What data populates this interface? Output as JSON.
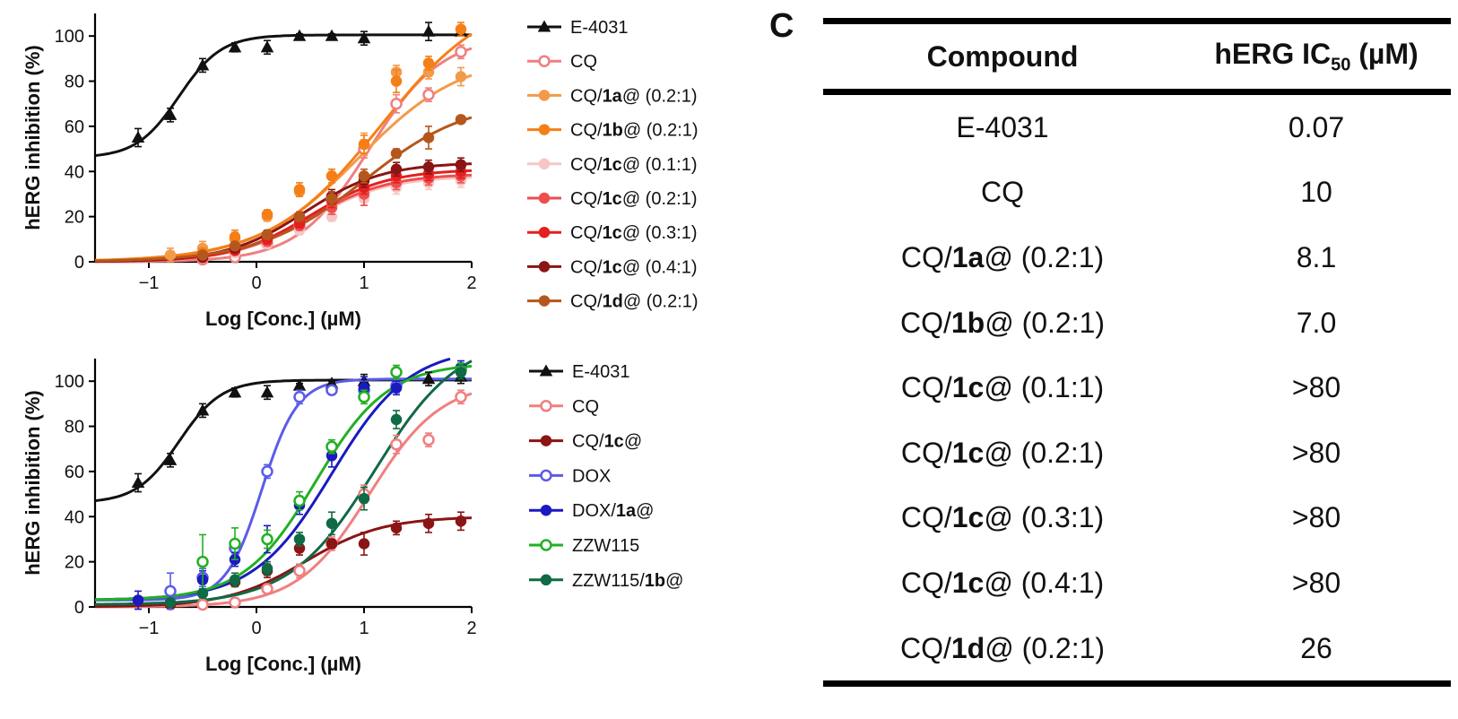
{
  "panel_label": "C",
  "table": {
    "headers": {
      "compound": "Compound",
      "ic50_prefix": "hERG IC",
      "ic50_sub": "50",
      "ic50_suffix": " (µM)"
    },
    "rows": [
      {
        "pre": "E-4031",
        "bold": "",
        "post": "",
        "value": "0.07"
      },
      {
        "pre": "CQ",
        "bold": "",
        "post": "",
        "value": "10"
      },
      {
        "pre": "CQ/",
        "bold": "1a",
        "post": "@ (0.2:1)",
        "value": "8.1"
      },
      {
        "pre": "CQ/",
        "bold": "1b",
        "post": "@ (0.2:1)",
        "value": "7.0"
      },
      {
        "pre": "CQ/",
        "bold": "1c",
        "post": "@ (0.1:1)",
        "value": ">80"
      },
      {
        "pre": "CQ/",
        "bold": "1c",
        "post": "@ (0.2:1)",
        "value": ">80"
      },
      {
        "pre": "CQ/",
        "bold": "1c",
        "post": "@ (0.3:1)",
        "value": ">80"
      },
      {
        "pre": "CQ/",
        "bold": "1c",
        "post": "@ (0.4:1)",
        "value": ">80"
      },
      {
        "pre": "CQ/",
        "bold": "1d",
        "post": "@ (0.2:1)",
        "value": "26"
      }
    ]
  },
  "chart_data": [
    {
      "type": "line",
      "xlabel": "Log [Conc.] (µM)",
      "ylabel": "hERG inhibition (%)",
      "xlim": [
        -1.5,
        2
      ],
      "ylim": [
        0,
        110
      ],
      "xticks": [
        -1,
        0,
        1,
        2
      ],
      "yticks": [
        0,
        20,
        40,
        60,
        80,
        100
      ],
      "grid": false,
      "legend": "right",
      "series": [
        {
          "pre": "E-4031",
          "bold": "",
          "post": "",
          "color": "#111111",
          "marker": "triangle",
          "fill": "filled",
          "curve": {
            "bottom": 46,
            "top": 100.5,
            "logic50": -0.72,
            "hill": 2.2
          },
          "points": [
            [
              -1.1,
              55,
              4
            ],
            [
              -0.8,
              65,
              3
            ],
            [
              -0.5,
              87,
              3
            ],
            [
              -0.2,
              95,
              2
            ],
            [
              0.1,
              95,
              3
            ],
            [
              0.4,
              100,
              1
            ],
            [
              0.7,
              100,
              1
            ],
            [
              1.0,
              99,
              3
            ],
            [
              1.6,
              102,
              4
            ],
            [
              1.9,
              102,
              2
            ]
          ]
        },
        {
          "pre": "CQ",
          "bold": "",
          "post": "",
          "color": "#f07f7f",
          "marker": "circle",
          "fill": "open",
          "curve": {
            "bottom": 0,
            "top": 100,
            "logic50": 1.05,
            "hill": 1.3
          },
          "points": [
            [
              -0.5,
              1,
              1
            ],
            [
              -0.2,
              2,
              1
            ],
            [
              0.1,
              8,
              2
            ],
            [
              0.4,
              16,
              3
            ],
            [
              0.7,
              28,
              3
            ],
            [
              1.0,
              50,
              4
            ],
            [
              1.3,
              70,
              4
            ],
            [
              1.6,
              74,
              3
            ],
            [
              1.9,
              93,
              3
            ]
          ]
        },
        {
          "pre": "CQ/",
          "bold": "1a",
          "post": "@ (0.2:1)",
          "color": "#f39a4a",
          "marker": "circle",
          "fill": "filled",
          "curve": {
            "bottom": 0,
            "top": 92,
            "logic50": 0.95,
            "hill": 0.9
          },
          "points": [
            [
              -0.8,
              3,
              3
            ],
            [
              -0.5,
              6,
              3
            ],
            [
              -0.2,
              10,
              3
            ],
            [
              0.1,
              20,
              2
            ],
            [
              0.4,
              31,
              2
            ],
            [
              0.7,
              38,
              3
            ],
            [
              1.0,
              52,
              5
            ],
            [
              1.3,
              84,
              3
            ],
            [
              1.6,
              84,
              3
            ],
            [
              1.9,
              82,
              4
            ]
          ]
        },
        {
          "pre": "CQ/",
          "bold": "1b",
          "post": "@ (0.2:1)",
          "color": "#f57f17",
          "marker": "circle",
          "fill": "filled",
          "curve": {
            "bottom": 0,
            "top": 120,
            "logic50": 1.15,
            "hill": 0.85
          },
          "points": [
            [
              -0.5,
              4,
              2
            ],
            [
              -0.2,
              11,
              3
            ],
            [
              0.1,
              21,
              2
            ],
            [
              0.4,
              32,
              3
            ],
            [
              0.7,
              38,
              3
            ],
            [
              1.0,
              52,
              4
            ],
            [
              1.3,
              80,
              5
            ],
            [
              1.6,
              88,
              3
            ],
            [
              1.9,
              103,
              3
            ]
          ]
        },
        {
          "pre": "CQ/",
          "bold": "1c",
          "post": "@ (0.1:1)",
          "color": "#f7c6c4",
          "marker": "circle",
          "fill": "filled",
          "curve": {
            "bottom": 0,
            "top": 38,
            "logic50": 0.5,
            "hill": 1.2
          },
          "points": [
            [
              -0.5,
              2,
              1
            ],
            [
              -0.2,
              4,
              1
            ],
            [
              0.1,
              8,
              2
            ],
            [
              0.4,
              14,
              2
            ],
            [
              0.7,
              20,
              2
            ],
            [
              1.0,
              28,
              3
            ],
            [
              1.3,
              33,
              3
            ],
            [
              1.6,
              35,
              3
            ],
            [
              1.9,
              36,
              3
            ]
          ]
        },
        {
          "pre": "CQ/",
          "bold": "1c",
          "post": "@ (0.2:1)",
          "color": "#ee4e4e",
          "marker": "circle",
          "fill": "filled",
          "curve": {
            "bottom": 0,
            "top": 39,
            "logic50": 0.5,
            "hill": 1.2
          },
          "points": [
            [
              -0.5,
              2,
              1
            ],
            [
              -0.2,
              5,
              1
            ],
            [
              0.1,
              9,
              2
            ],
            [
              0.4,
              16,
              2
            ],
            [
              0.7,
              24,
              3
            ],
            [
              1.0,
              30,
              5
            ],
            [
              1.3,
              35,
              3
            ],
            [
              1.6,
              37,
              3
            ],
            [
              1.9,
              38,
              3
            ]
          ]
        },
        {
          "pre": "CQ/",
          "bold": "1c",
          "post": "@ (0.3:1)",
          "color": "#e41f1f",
          "marker": "circle",
          "fill": "filled",
          "curve": {
            "bottom": 0,
            "top": 41,
            "logic50": 0.5,
            "hill": 1.2
          },
          "points": [
            [
              -0.5,
              2,
              1
            ],
            [
              -0.2,
              5,
              1
            ],
            [
              0.1,
              10,
              2
            ],
            [
              0.4,
              17,
              2
            ],
            [
              0.7,
              27,
              3
            ],
            [
              1.0,
              33,
              3
            ],
            [
              1.3,
              38,
              3
            ],
            [
              1.6,
              39,
              3
            ],
            [
              1.9,
              40,
              3
            ]
          ]
        },
        {
          "pre": "CQ/",
          "bold": "1c",
          "post": "@ (0.4:1)",
          "color": "#8b1414",
          "marker": "circle",
          "fill": "filled",
          "curve": {
            "bottom": 0,
            "top": 44,
            "logic50": 0.45,
            "hill": 1.2
          },
          "points": [
            [
              -0.5,
              2,
              1
            ],
            [
              -0.2,
              6,
              1
            ],
            [
              0.1,
              12,
              2
            ],
            [
              0.4,
              20,
              2
            ],
            [
              0.7,
              29,
              3
            ],
            [
              1.0,
              36,
              3
            ],
            [
              1.3,
              41,
              3
            ],
            [
              1.6,
              42,
              3
            ],
            [
              1.9,
              43,
              3
            ]
          ]
        },
        {
          "pre": "CQ/",
          "bold": "1d",
          "post": "@ (0.2:1)",
          "color": "#b5571c",
          "marker": "circle",
          "fill": "filled",
          "curve": {
            "bottom": 0,
            "top": 72,
            "logic50": 1.0,
            "hill": 0.9
          },
          "points": [
            [
              -0.5,
              3,
              1
            ],
            [
              -0.2,
              7,
              1
            ],
            [
              0.1,
              12,
              2
            ],
            [
              0.4,
              20,
              2
            ],
            [
              0.7,
              28,
              3
            ],
            [
              1.0,
              38,
              3
            ],
            [
              1.3,
              48,
              2
            ],
            [
              1.6,
              55,
              5
            ],
            [
              1.9,
              63,
              1
            ]
          ]
        }
      ]
    },
    {
      "type": "line",
      "xlabel": "Log [Conc.] (µM)",
      "ylabel": "hERG inhibition (%)",
      "xlim": [
        -1.5,
        2
      ],
      "ylim": [
        0,
        110
      ],
      "xticks": [
        -1,
        0,
        1,
        2
      ],
      "yticks": [
        0,
        20,
        40,
        60,
        80,
        100
      ],
      "grid": false,
      "legend": "right",
      "series": [
        {
          "pre": "E-4031",
          "bold": "",
          "post": "",
          "color": "#111111",
          "marker": "triangle",
          "fill": "filled",
          "curve": {
            "bottom": 46,
            "top": 100.5,
            "logic50": -0.72,
            "hill": 2.2
          },
          "points": [
            [
              -1.1,
              55,
              4
            ],
            [
              -0.8,
              65,
              3
            ],
            [
              -0.5,
              87,
              3
            ],
            [
              -0.2,
              95,
              2
            ],
            [
              0.1,
              95,
              3
            ],
            [
              0.4,
              98,
              1
            ],
            [
              0.7,
              99,
              1
            ],
            [
              1.0,
              100,
              3
            ],
            [
              1.6,
              101,
              3
            ],
            [
              1.9,
              102,
              3
            ]
          ]
        },
        {
          "pre": "CQ",
          "bold": "",
          "post": "",
          "color": "#f07f7f",
          "marker": "circle",
          "fill": "open",
          "curve": {
            "bottom": 0,
            "top": 100,
            "logic50": 1.05,
            "hill": 1.3
          },
          "points": [
            [
              -0.5,
              1,
              1
            ],
            [
              -0.2,
              2,
              1
            ],
            [
              0.1,
              8,
              2
            ],
            [
              0.4,
              16,
              3
            ],
            [
              0.7,
              28,
              3
            ],
            [
              1.0,
              50,
              4
            ],
            [
              1.3,
              72,
              4
            ],
            [
              1.6,
              74,
              3
            ],
            [
              1.9,
              93,
              3
            ]
          ]
        },
        {
          "pre": "CQ/",
          "bold": "1c",
          "post": "@",
          "color": "#8b1414",
          "marker": "circle",
          "fill": "filled",
          "curve": {
            "bottom": 0,
            "top": 40,
            "logic50": 0.45,
            "hill": 1.2
          },
          "points": [
            [
              -0.8,
              1,
              1
            ],
            [
              -0.2,
              11,
              2
            ],
            [
              0.1,
              16,
              3
            ],
            [
              0.4,
              26,
              3
            ],
            [
              0.7,
              28,
              2
            ],
            [
              1.0,
              28,
              5
            ],
            [
              1.3,
              35,
              3
            ],
            [
              1.6,
              37,
              4
            ],
            [
              1.9,
              38,
              4
            ]
          ]
        },
        {
          "pre": "DOX",
          "bold": "",
          "post": "",
          "color": "#5b5ce8",
          "marker": "circle",
          "fill": "open",
          "curve": {
            "bottom": 3,
            "top": 101,
            "logic50": 0.05,
            "hill": 2.6
          },
          "points": [
            [
              -0.8,
              7,
              8
            ],
            [
              -0.5,
              13,
              4
            ],
            [
              -0.2,
              26,
              3
            ],
            [
              0.1,
              60,
              3
            ],
            [
              0.4,
              93,
              3
            ],
            [
              0.7,
              96,
              2
            ],
            [
              1.0,
              96,
              4
            ],
            [
              1.3,
              98,
              3
            ],
            [
              1.9,
              105,
              2
            ]
          ]
        },
        {
          "pre": "DOX/",
          "bold": "1a",
          "post": "@",
          "color": "#1a1ac0",
          "marker": "circle",
          "fill": "filled",
          "curve": {
            "bottom": 3,
            "top": 115,
            "logic50": 0.7,
            "hill": 1.2
          },
          "points": [
            [
              -1.1,
              3,
              4
            ],
            [
              -0.5,
              12,
              4
            ],
            [
              -0.2,
              21,
              3
            ],
            [
              0.1,
              30,
              6
            ],
            [
              0.4,
              45,
              4
            ],
            [
              0.7,
              67,
              5
            ],
            [
              1.0,
              97,
              5
            ],
            [
              1.3,
              97,
              3
            ],
            [
              1.9,
              106,
              3
            ]
          ]
        },
        {
          "pre": "ZZW115",
          "bold": "",
          "post": "",
          "color": "#22b022",
          "marker": "circle",
          "fill": "open",
          "curve": {
            "bottom": 3,
            "top": 108,
            "logic50": 0.55,
            "hill": 1.3
          },
          "points": [
            [
              -0.5,
              20,
              12
            ],
            [
              -0.2,
              28,
              7
            ],
            [
              0.1,
              30,
              4
            ],
            [
              0.4,
              47,
              4
            ],
            [
              0.7,
              71,
              3
            ],
            [
              1.0,
              93,
              3
            ],
            [
              1.3,
              104,
              3
            ],
            [
              1.9,
              105,
              3
            ]
          ]
        },
        {
          "pre": "ZZW115/",
          "bold": "1b",
          "post": "@",
          "color": "#0f6a45",
          "marker": "circle",
          "fill": "filled",
          "curve": {
            "bottom": 1,
            "top": 120,
            "logic50": 1.1,
            "hill": 1.1
          },
          "points": [
            [
              -0.8,
              2,
              1
            ],
            [
              -0.5,
              6,
              2
            ],
            [
              -0.2,
              12,
              3
            ],
            [
              0.1,
              17,
              3
            ],
            [
              0.4,
              30,
              3
            ],
            [
              0.7,
              37,
              5
            ],
            [
              1.0,
              48,
              5
            ],
            [
              1.3,
              83,
              4
            ],
            [
              1.9,
              104,
              3
            ]
          ]
        }
      ]
    }
  ]
}
